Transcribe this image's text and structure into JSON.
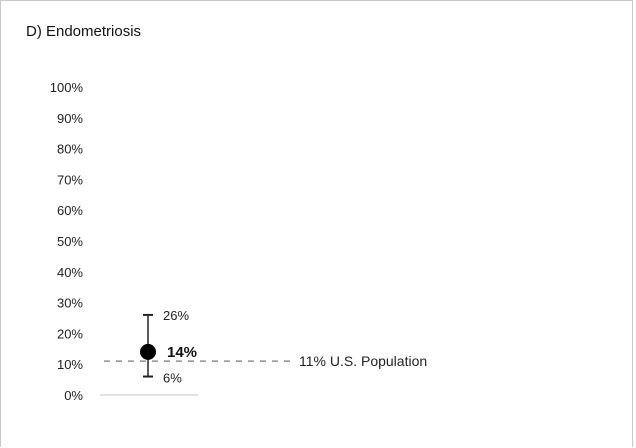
{
  "chart_data": {
    "type": "scatter",
    "title": "D) Endometriosis",
    "y_tick_labels": [
      "0%",
      "10%",
      "20%",
      "30%",
      "40%",
      "50%",
      "60%",
      "70%",
      "80%",
      "90%",
      "100%"
    ],
    "ylim": [
      0,
      100
    ],
    "grid": false,
    "point": {
      "value": 14,
      "lower": 6,
      "upper": 26,
      "value_label": "14%",
      "lower_label": "6%",
      "upper_label": "26%"
    },
    "reference_line": {
      "value": 11,
      "label": "11% U.S. Population",
      "style": "dashed"
    },
    "colors": {
      "point": "#000000",
      "error_bar": "#222222",
      "reference_line": "#777777",
      "baseline": "#d9d9d9"
    }
  }
}
